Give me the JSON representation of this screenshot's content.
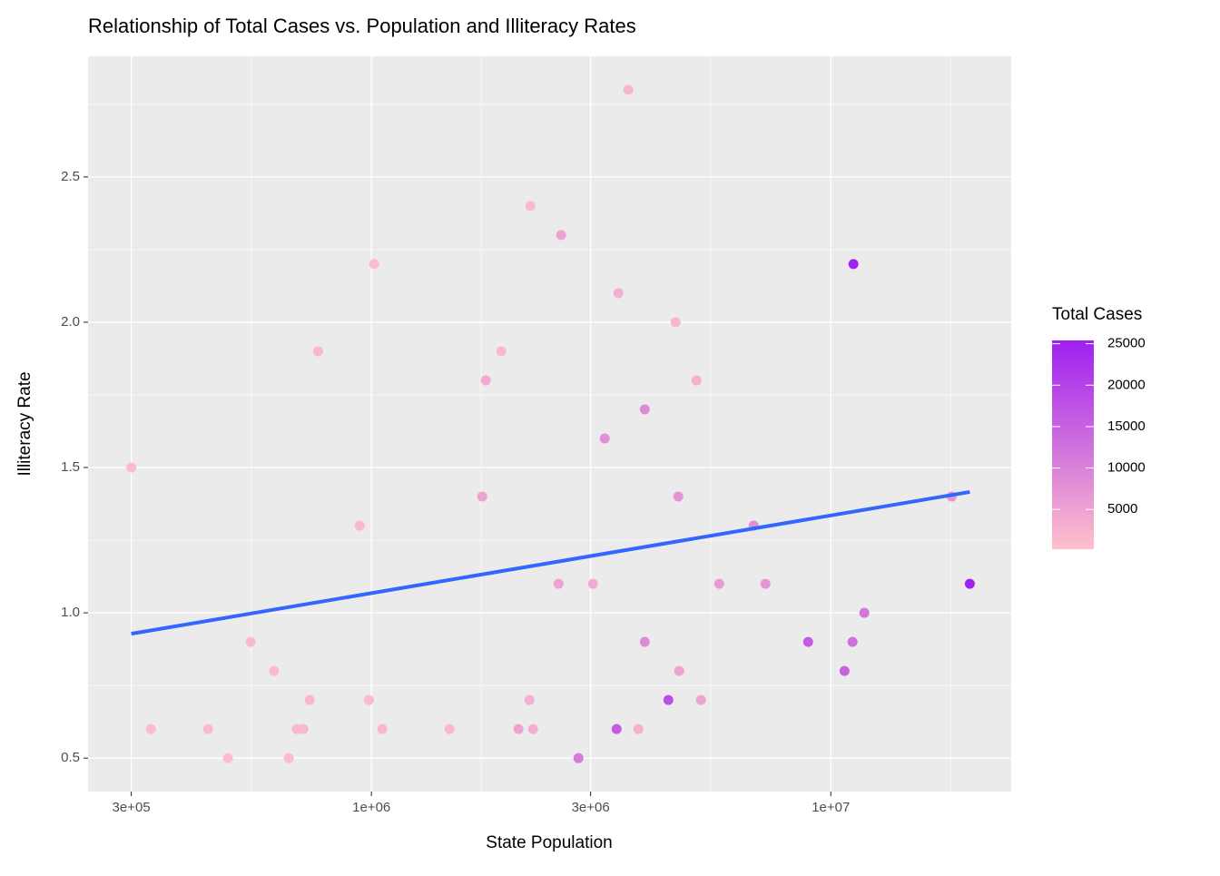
{
  "chart_data": {
    "type": "scatter",
    "title": "Relationship of Total Cases vs. Population and Illiteracy Rates",
    "x_label": "State Population",
    "y_label": "Illiteracy Rate",
    "x_scale": "log",
    "grid": true,
    "x": [
      300000,
      331000,
      441000,
      487000,
      546000,
      614000,
      661000,
      688000,
      711000,
      734000,
      765000,
      943000,
      987000,
      1014000,
      1056000,
      1479000,
      1742000,
      1774000,
      1917000,
      2090000,
      2208000,
      2218000,
      2248000,
      2554000,
      2588000,
      2822000,
      3035000,
      3220000,
      3417000,
      3448000,
      3625000,
      3811000,
      3935000,
      3935000,
      4429000,
      4593000,
      4656000,
      4677000,
      5100000,
      5217000,
      5714000,
      6792000,
      7206000,
      8925000,
      10710000,
      11150000,
      11200000,
      11830000,
      18320000,
      20070000
    ],
    "values": [
      1.5,
      0.6,
      0.6,
      0.5,
      0.9,
      0.8,
      0.5,
      0.6,
      0.6,
      0.7,
      1.9,
      1.3,
      0.7,
      2.2,
      0.6,
      0.6,
      1.4,
      1.8,
      1.9,
      0.6,
      0.7,
      2.4,
      0.6,
      1.1,
      2.3,
      0.5,
      1.1,
      1.6,
      0.6,
      2.1,
      2.8,
      0.6,
      0.9,
      1.7,
      0.7,
      2.0,
      1.4,
      0.8,
      1.8,
      0.7,
      1.1,
      1.3,
      1.1,
      0.9,
      0.8,
      0.9,
      2.2,
      1.0,
      1.4,
      1.1
    ],
    "color_values": [
      800,
      900,
      1000,
      800,
      1200,
      1000,
      900,
      1500,
      1400,
      1600,
      1800,
      1500,
      1300,
      900,
      1400,
      1600,
      5000,
      4000,
      1500,
      5000,
      3000,
      1200,
      3000,
      5000,
      5000,
      11000,
      4000,
      8000,
      16000,
      3000,
      2000,
      2500,
      9000,
      9000,
      18000,
      2000,
      7000,
      5000,
      3000,
      5000,
      6000,
      8000,
      7000,
      16000,
      15000,
      13000,
      25000,
      12000,
      7000,
      25400
    ],
    "xlim": [
      241600,
      24700000
    ],
    "xticks": [
      {
        "value": 300000,
        "label": "3e+05"
      },
      {
        "value": 1000000,
        "label": "1e+06"
      },
      {
        "value": 3000000,
        "label": "3e+06"
      },
      {
        "value": 10000000,
        "label": "1e+07"
      }
    ],
    "ylim": [
      0.385,
      2.915
    ],
    "yticks": [
      0.5,
      {
        "value": 1.0,
        "label": "1.0"
      },
      1.5,
      {
        "value": 2.0,
        "label": "2.0"
      },
      2.5
    ],
    "trend": {
      "x": [
        300000,
        20070000
      ],
      "y": [
        0.928,
        1.416
      ],
      "color": "#3366FF"
    },
    "colorbar": {
      "title": "Total Cases",
      "lim": [
        200,
        25400
      ],
      "ticks": [
        5000,
        10000,
        15000,
        20000,
        25000
      ],
      "low": "#FFC0CB",
      "high": "#A020F0"
    }
  }
}
